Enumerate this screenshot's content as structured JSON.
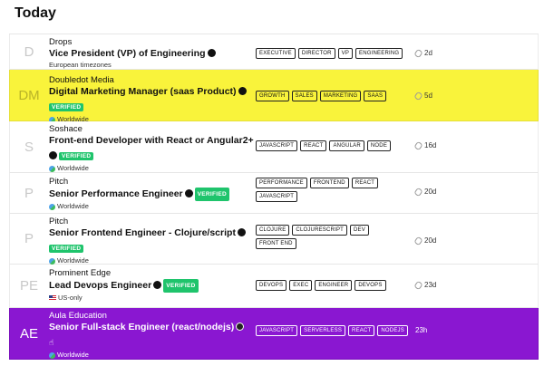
{
  "page": {
    "title": "Today"
  },
  "jobs": [
    {
      "initials": "D",
      "company": "Drops",
      "title": "Vice President (VP) of Engineering",
      "verified": "",
      "location": "European timezones",
      "tags": [
        "EXECUTIVE",
        "DIRECTOR",
        "VP",
        "ENGINEERING"
      ],
      "age": "2d"
    },
    {
      "initials": "DM",
      "company": "Doubledot Media",
      "title": "Digital Marketing Manager (saas Product)",
      "verified": "VERIFIED",
      "location": "Worldwide",
      "tags": [
        "GROWTH",
        "SALES",
        "MARKETING",
        "SAAS"
      ],
      "age": "5d"
    },
    {
      "initials": "S",
      "company": "Soshace",
      "title": "Front-end Developer with React or Angular2+",
      "verified": "VERIFIED",
      "location": "Worldwide",
      "tags": [
        "JAVASCRIPT",
        "REACT",
        "ANGULAR",
        "NODE"
      ],
      "age": "16d"
    },
    {
      "initials": "P",
      "company": "Pitch",
      "title": "Senior Performance Engineer",
      "verified": "VERIFIED",
      "location": "Worldwide",
      "tags": [
        "PERFORMANCE",
        "FRONTEND",
        "REACT",
        "JAVASCRIPT"
      ],
      "age": "20d"
    },
    {
      "initials": "P",
      "company": "Pitch",
      "title": "Senior Frontend Engineer - Clojure/script",
      "verified": "VERIFIED",
      "location": "Worldwide",
      "tags": [
        "CLOJURE",
        "CLOJURESCRIPT",
        "DEV",
        "FRONT END"
      ],
      "age": "20d"
    },
    {
      "initials": "PE",
      "company": "Prominent Edge",
      "title": "Lead Devops Engineer",
      "verified": "VERIFIED",
      "location": "US-only",
      "tags": [
        "DEVOPS",
        "EXEC",
        "ENGINEER",
        "DEVOPS"
      ],
      "age": "23d"
    },
    {
      "initials": "AE",
      "company": "Aula Education",
      "title": "Senior Full-stack Engineer (react/nodejs)",
      "verified": "",
      "location": "Worldwide",
      "tags": [
        "JAVASCRIPT",
        "SERVERLESS",
        "REACT",
        "NODEJS"
      ],
      "age": "23h"
    }
  ],
  "colors": {
    "highlight_yellow": "#f9f33b",
    "highlight_purple": "#8a17d1",
    "verified_green": "#1fc46c"
  }
}
